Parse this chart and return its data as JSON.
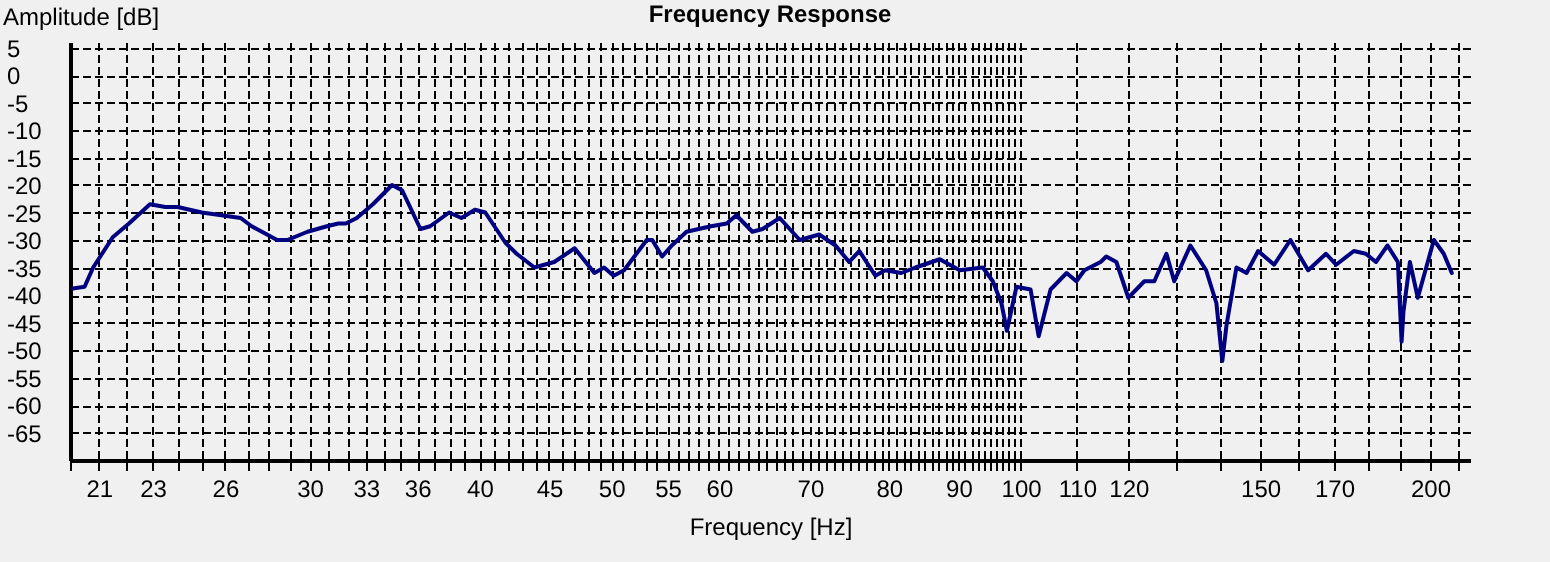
{
  "chart_data": {
    "type": "line",
    "title": "Frequency Response",
    "xlabel": "Frequency [Hz]",
    "ylabel": "Amplitude [dB]",
    "log": "x",
    "grid": true,
    "line_style": "solid",
    "marker": "none",
    "xlim": [
      20,
      214
    ],
    "ylim": [
      -70,
      6
    ],
    "xticks": [
      {
        "value": 20,
        "label": null
      },
      21,
      {
        "value": 22,
        "label": null
      },
      23,
      {
        "value": 24,
        "label": null
      },
      {
        "value": 25,
        "label": null
      },
      26,
      {
        "value": 27,
        "label": null
      },
      {
        "value": 28,
        "label": null
      },
      {
        "value": 29,
        "label": null
      },
      30,
      {
        "value": 31,
        "label": null
      },
      {
        "value": 32,
        "label": null
      },
      33,
      {
        "value": 34,
        "label": null
      },
      {
        "value": 35,
        "label": null
      },
      36,
      {
        "value": 37,
        "label": null
      },
      {
        "value": 38,
        "label": null
      },
      {
        "value": 39,
        "label": null
      },
      40,
      {
        "value": 41,
        "label": null
      },
      {
        "value": 42,
        "label": null
      },
      {
        "value": 43,
        "label": null
      },
      {
        "value": 44,
        "label": null
      },
      45,
      {
        "value": 46,
        "label": null
      },
      {
        "value": 47,
        "label": null
      },
      {
        "value": 48,
        "label": null
      },
      {
        "value": 49,
        "label": null
      },
      50,
      {
        "value": 51,
        "label": null
      },
      {
        "value": 52,
        "label": null
      },
      {
        "value": 53,
        "label": null
      },
      {
        "value": 54,
        "label": null
      },
      55,
      {
        "value": 56,
        "label": null
      },
      {
        "value": 57,
        "label": null
      },
      {
        "value": 58,
        "label": null
      },
      {
        "value": 59,
        "label": null
      },
      60,
      {
        "value": 61,
        "label": null
      },
      {
        "value": 62,
        "label": null
      },
      {
        "value": 63,
        "label": null
      },
      {
        "value": 64,
        "label": null
      },
      {
        "value": 65,
        "label": null
      },
      {
        "value": 66,
        "label": null
      },
      {
        "value": 67,
        "label": null
      },
      {
        "value": 68,
        "label": null
      },
      {
        "value": 69,
        "label": null
      },
      70,
      {
        "value": 71,
        "label": null
      },
      {
        "value": 72,
        "label": null
      },
      {
        "value": 73,
        "label": null
      },
      {
        "value": 74,
        "label": null
      },
      {
        "value": 75,
        "label": null
      },
      {
        "value": 76,
        "label": null
      },
      {
        "value": 77,
        "label": null
      },
      {
        "value": 78,
        "label": null
      },
      {
        "value": 79,
        "label": null
      },
      80,
      {
        "value": 81,
        "label": null
      },
      {
        "value": 82,
        "label": null
      },
      {
        "value": 83,
        "label": null
      },
      {
        "value": 84,
        "label": null
      },
      {
        "value": 85,
        "label": null
      },
      {
        "value": 86,
        "label": null
      },
      {
        "value": 87,
        "label": null
      },
      {
        "value": 88,
        "label": null
      },
      {
        "value": 89,
        "label": null
      },
      90,
      {
        "value": 91,
        "label": null
      },
      {
        "value": 92,
        "label": null
      },
      {
        "value": 93,
        "label": null
      },
      {
        "value": 94,
        "label": null
      },
      {
        "value": 95,
        "label": null
      },
      {
        "value": 96,
        "label": null
      },
      {
        "value": 97,
        "label": null
      },
      {
        "value": 98,
        "label": null
      },
      {
        "value": 99,
        "label": null
      },
      100,
      110,
      120,
      {
        "value": 130,
        "label": null
      },
      {
        "value": 140,
        "label": null
      },
      150,
      {
        "value": 160,
        "label": null
      },
      170,
      {
        "value": 180,
        "label": null
      },
      {
        "value": 190,
        "label": null
      },
      200,
      {
        "value": 210,
        "label": null
      }
    ],
    "yticks": [
      5,
      0,
      -5,
      -10,
      -15,
      -20,
      -25,
      -30,
      -35,
      -40,
      -45,
      -50,
      -55,
      -60,
      -65
    ],
    "series": [
      {
        "color": "#000080",
        "x": [
          20.1,
          20.5,
          20.8,
          21.5,
          22.1,
          22.9,
          23.5,
          24,
          25,
          26.7,
          27.2,
          28.4,
          28.9,
          29.9,
          30.9,
          31.5,
          31.9,
          32.5,
          33.4,
          34.5,
          35.1,
          36.2,
          36.8,
          38,
          38.8,
          39.7,
          40.4,
          41.8,
          42.6,
          43.9,
          45.4,
          47,
          48.6,
          49.4,
          50.2,
          51.1,
          53.1,
          53.6,
          54.5,
          55.4,
          56.8,
          59.2,
          60.8,
          61.8,
          63.5,
          64.6,
          66.5,
          68.8,
          71.1,
          73.1,
          74.8,
          76.1,
          78.2,
          79.5,
          81.7,
          83.7,
          87.2,
          90.2,
          93.8,
          95.4,
          96.8,
          97.7,
          99.3,
          101.7,
          103.1,
          105.2,
          108.1,
          109.9,
          111.4,
          114.5,
          115.6,
          117.6,
          120,
          123.3,
          125.4,
          128,
          129.7,
          133.3,
          136.9,
          139.3,
          140.7,
          141.7,
          144.1,
          146.6,
          149.5,
          153.6,
          157.9,
          162.7,
          167.7,
          170.6,
          175.8,
          179.4,
          182.5,
          186.1,
          189.4,
          190.6,
          191.2,
          193.3,
          195.9,
          201.3,
          204.7,
          207.5
        ],
        "values": [
          -38.8,
          -38.5,
          -35,
          -29.5,
          -27,
          -23.5,
          -24,
          -24,
          -25,
          -26,
          -27.5,
          -30,
          -30,
          -28.5,
          -27.5,
          -27,
          -27,
          -26,
          -23.5,
          -20,
          -21,
          -28,
          -27.5,
          -25,
          -26,
          -24.5,
          -25,
          -30.5,
          -32.5,
          -35,
          -34,
          -31.5,
          -36,
          -35,
          -36.5,
          -35.5,
          -30,
          -30,
          -33,
          -31,
          -28.5,
          -27.5,
          -27,
          -25.5,
          -28.5,
          -28,
          -26,
          -30,
          -29,
          -31,
          -34,
          -32,
          -36.5,
          -35.5,
          -36,
          -35,
          -33.5,
          -35.5,
          -35,
          -37.5,
          -41.5,
          -46.5,
          -38.5,
          -39,
          -47.5,
          -39,
          -36,
          -37.5,
          -35.5,
          -34,
          -33,
          -34,
          -40.5,
          -37.5,
          -37.5,
          -32.5,
          -37.5,
          -31,
          -35.5,
          -41.5,
          -52,
          -45.5,
          -35,
          -36,
          -32,
          -34.5,
          -30,
          -35.5,
          -32.5,
          -34.5,
          -32,
          -32.5,
          -34,
          -31,
          -34,
          -48.5,
          -43,
          -34,
          -40.5,
          -30,
          -32.5,
          -36
        ]
      }
    ]
  }
}
